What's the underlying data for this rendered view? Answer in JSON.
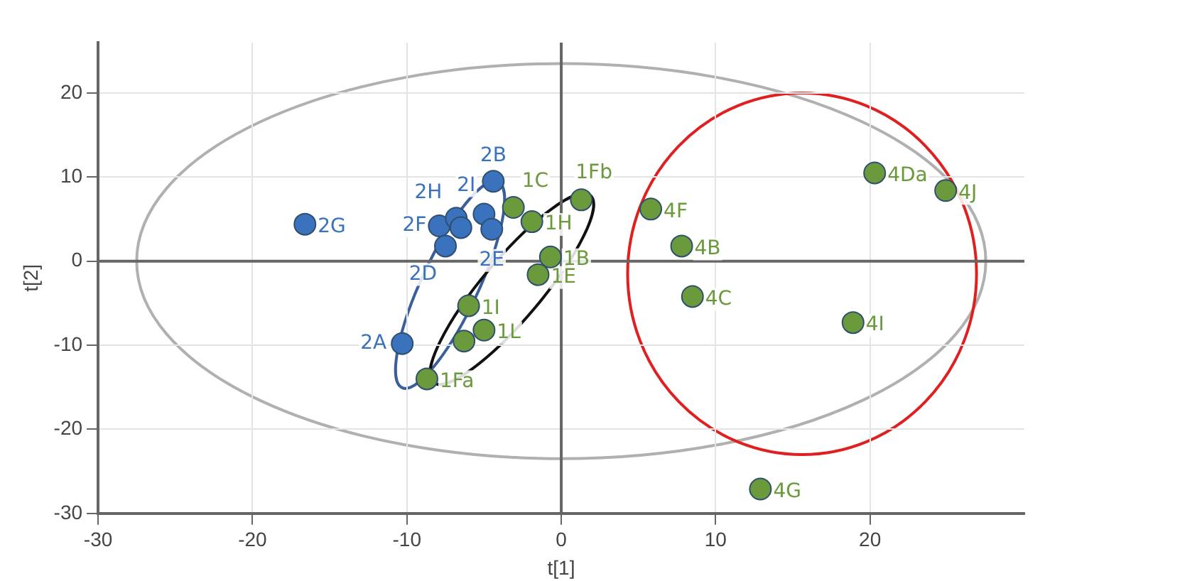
{
  "chart_data": {
    "type": "scatter",
    "xlabel": "t[1]",
    "ylabel": "t[2]",
    "xlim": [
      -30,
      30
    ],
    "ylim": [
      -30,
      26
    ],
    "xticks": [
      -30,
      -20,
      -10,
      0,
      10,
      20
    ],
    "yticks": [
      -30,
      -20,
      -10,
      0,
      10,
      20
    ],
    "grid": true,
    "legend": false,
    "marker": "circle",
    "series": [
      {
        "color": "#3a72bd",
        "x": [
          -16.6,
          -4.4,
          -7.9,
          -6.8,
          -6.5,
          -5.0,
          -4.5,
          -7.5,
          -10.3
        ],
        "values": [
          4.4,
          9.5,
          4.2,
          5.1,
          4.0,
          5.6,
          3.8,
          1.8,
          -9.8
        ]
      },
      {
        "color": "#6b9a3c",
        "x": [
          -3.1,
          -1.9,
          1.3,
          -0.7,
          -1.5,
          -6.0,
          -5.0,
          -6.3,
          -8.7,
          5.8,
          7.8,
          8.5,
          20.3,
          24.9,
          18.9,
          12.9
        ],
        "values": [
          6.4,
          4.7,
          7.3,
          0.5,
          -1.6,
          -5.3,
          -8.2,
          -9.5,
          -14.0,
          6.2,
          1.8,
          -4.2,
          10.5,
          8.4,
          -7.3,
          -27.1
        ]
      }
    ],
    "annotations": [
      {
        "text": "2G",
        "x": -16.6,
        "y": 4.4
      },
      {
        "text": "2B",
        "x": -4.4,
        "y": 9.5
      },
      {
        "text": "2F",
        "x": -7.9,
        "y": 4.2
      },
      {
        "text": "2H",
        "x": -6.8,
        "y": 5.1
      },
      {
        "text": "2I",
        "x": -5.0,
        "y": 5.6
      },
      {
        "text": "2E",
        "x": -4.5,
        "y": 3.8
      },
      {
        "text": "2D",
        "x": -7.5,
        "y": 1.8
      },
      {
        "text": "2A",
        "x": -10.3,
        "y": -9.8
      },
      {
        "text": "1C",
        "x": -3.1,
        "y": 6.4
      },
      {
        "text": "1H",
        "x": -1.9,
        "y": 4.7
      },
      {
        "text": "1Fb",
        "x": 1.3,
        "y": 7.3
      },
      {
        "text": "1B",
        "x": -0.7,
        "y": 0.5
      },
      {
        "text": "1E",
        "x": -1.5,
        "y": -1.6
      },
      {
        "text": "1I",
        "x": -6.0,
        "y": -5.3
      },
      {
        "text": "1L",
        "x": -5.0,
        "y": -8.2
      },
      {
        "text": "1Fa",
        "x": -8.7,
        "y": -14.0
      },
      {
        "text": "4F",
        "x": 5.8,
        "y": 6.2
      },
      {
        "text": "4B",
        "x": 7.8,
        "y": 1.8
      },
      {
        "text": "4C",
        "x": 8.5,
        "y": -4.2
      },
      {
        "text": "4Da",
        "x": 20.3,
        "y": 10.5
      },
      {
        "text": "4J",
        "x": 24.9,
        "y": 8.4
      },
      {
        "text": "4I",
        "x": 18.9,
        "y": -7.3
      },
      {
        "text": "4G",
        "x": 12.9,
        "y": -27.1
      }
    ]
  }
}
